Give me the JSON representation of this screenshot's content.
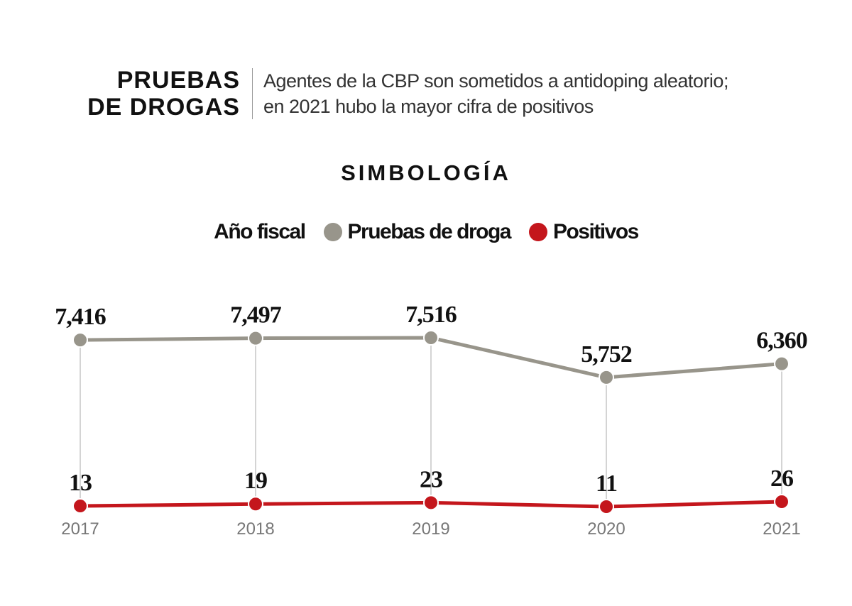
{
  "title": "PRUEBAS DE DROGAS",
  "subtitle_line1": "Agentes de la CBP son sometidos a antidoping aleatorio;",
  "subtitle_line2": "en 2021 hubo la mayor cifra de positivos",
  "legend_title": "SIMBOLOGÍA",
  "legend": {
    "category": "Año fiscal",
    "series1": "Pruebas de droga",
    "series2": "Positivos"
  },
  "colors": {
    "pruebas": "#98958b",
    "positivos": "#c4161c"
  },
  "chart_data": {
    "type": "line",
    "x": [
      "2017",
      "2018",
      "2019",
      "2020",
      "2021"
    ],
    "series": [
      {
        "name": "Pruebas de droga",
        "values": [
          7416,
          7497,
          7516,
          5752,
          6360
        ],
        "labels": [
          "7,416",
          "7,497",
          "7,516",
          "5,752",
          "6,360"
        ]
      },
      {
        "name": "Positivos",
        "values": [
          13,
          19,
          23,
          11,
          26
        ],
        "labels": [
          "13",
          "19",
          "23",
          "11",
          "26"
        ]
      }
    ],
    "grid": false,
    "legend_placement": "top"
  }
}
